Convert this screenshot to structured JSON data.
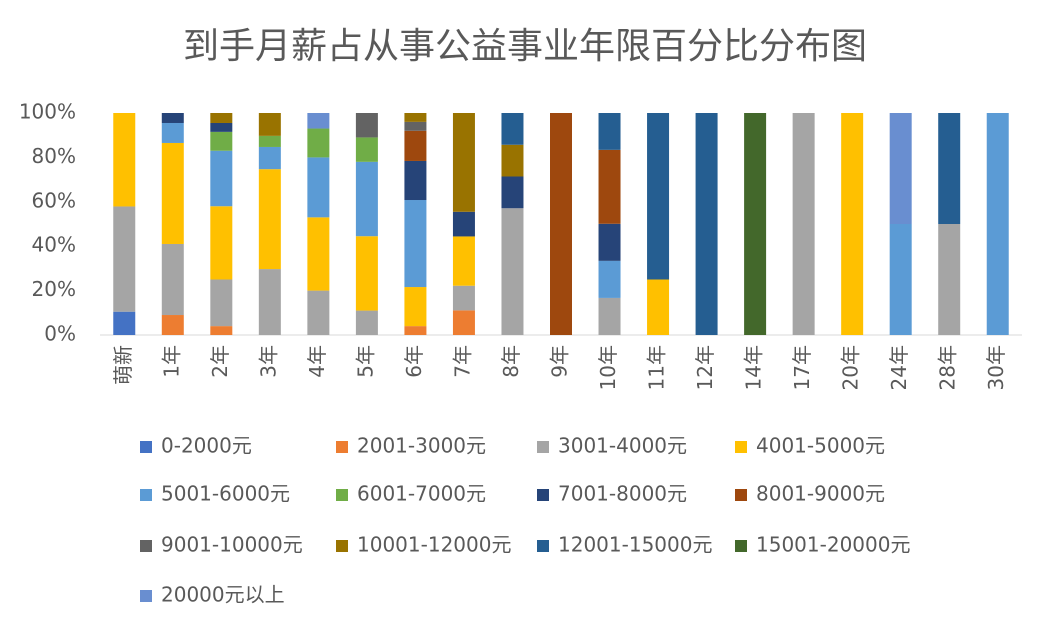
{
  "chart_data": {
    "type": "stacked_bar_percent",
    "title": "到手月薪占从事公益事业年限百分比分布图",
    "categories": [
      "萌新",
      "1年",
      "2年",
      "3年",
      "4年",
      "5年",
      "6年",
      "7年",
      "8年",
      "9年",
      "10年",
      "11年",
      "12年",
      "14年",
      "17年",
      "20年",
      "24年",
      "28年",
      "30年"
    ],
    "ylim": [
      0,
      100
    ],
    "yticks": [
      {
        "value": 0,
        "label": "0%"
      },
      {
        "value": 20,
        "label": "20%"
      },
      {
        "value": 40,
        "label": "40%"
      },
      {
        "value": 60,
        "label": "60%"
      },
      {
        "value": 80,
        "label": "80%"
      },
      {
        "value": 100,
        "label": "100%"
      }
    ],
    "grid": false,
    "series": [
      {
        "name": "0-2000元",
        "color": "#4472c4",
        "values": [
          10.5,
          0,
          0,
          0,
          0,
          0,
          0,
          0,
          0,
          0,
          0,
          0,
          0,
          0,
          0,
          0,
          0,
          0,
          0
        ]
      },
      {
        "name": "2001-3000元",
        "color": "#ed7d31",
        "values": [
          0,
          9,
          4,
          0,
          0,
          0,
          4,
          11.1,
          0,
          0,
          0,
          0,
          0,
          0,
          0,
          0,
          0,
          0,
          0
        ]
      },
      {
        "name": "3001-4000元",
        "color": "#a5a5a5",
        "values": [
          47.4,
          32,
          21,
          29.7,
          20,
          11,
          0,
          11.1,
          57.1,
          0,
          16.7,
          0,
          0,
          0,
          100,
          0,
          0,
          50,
          0
        ]
      },
      {
        "name": "4001-5000元",
        "color": "#ffc000",
        "values": [
          42.1,
          45.5,
          33,
          45,
          33,
          33.5,
          17.6,
          22.2,
          0,
          0,
          0,
          25,
          0,
          0,
          0,
          100,
          0,
          0,
          0
        ]
      },
      {
        "name": "5001-6000元",
        "color": "#5b9bd5",
        "values": [
          0,
          9,
          25,
          10,
          27,
          33.5,
          39.2,
          0,
          0,
          0,
          16.7,
          0,
          0,
          0,
          0,
          0,
          50,
          0,
          100
        ]
      },
      {
        "name": "6001-7000元",
        "color": "#70ad47",
        "values": [
          0,
          0,
          8.5,
          5,
          13,
          11,
          0,
          0,
          0,
          0,
          0,
          0,
          0,
          0,
          0,
          0,
          0,
          0,
          0
        ]
      },
      {
        "name": "7001-8000元",
        "color": "#264478",
        "values": [
          0,
          4.5,
          4,
          0,
          0,
          0,
          17.6,
          11.1,
          14.3,
          0,
          16.7,
          0,
          0,
          0,
          0,
          0,
          0,
          0,
          0
        ]
      },
      {
        "name": "8001-9000元",
        "color": "#9e480e",
        "values": [
          0,
          0,
          0,
          0,
          0,
          0,
          13.6,
          0,
          0,
          100,
          33.3,
          0,
          0,
          0,
          0,
          0,
          0,
          0,
          0
        ]
      },
      {
        "name": "9001-10000元",
        "color": "#636363",
        "values": [
          0,
          0,
          0,
          0,
          0,
          11,
          4,
          0,
          0,
          0,
          0,
          0,
          0,
          0,
          0,
          0,
          0,
          0,
          0
        ]
      },
      {
        "name": "10001-12000元",
        "color": "#997300",
        "values": [
          0,
          0,
          4.5,
          10.3,
          0,
          0,
          4,
          44.5,
          14.3,
          0,
          0,
          0,
          0,
          0,
          0,
          0,
          0,
          0,
          0
        ]
      },
      {
        "name": "12001-15000元",
        "color": "#255e91",
        "values": [
          0,
          0,
          0,
          0,
          0,
          0,
          0,
          0,
          14.3,
          0,
          16.6,
          75,
          100,
          0,
          0,
          0,
          0,
          50,
          0
        ]
      },
      {
        "name": "15001-20000元",
        "color": "#43682b",
        "values": [
          0,
          0,
          0,
          0,
          0,
          0,
          0,
          0,
          0,
          0,
          0,
          0,
          0,
          100,
          0,
          0,
          0,
          0,
          0
        ]
      },
      {
        "name": "20000元以上",
        "color": "#698ed0",
        "values": [
          0,
          0,
          0,
          0,
          7,
          0,
          0,
          0,
          0,
          0,
          0,
          0,
          0,
          0,
          0,
          0,
          50,
          0,
          0
        ]
      }
    ]
  }
}
